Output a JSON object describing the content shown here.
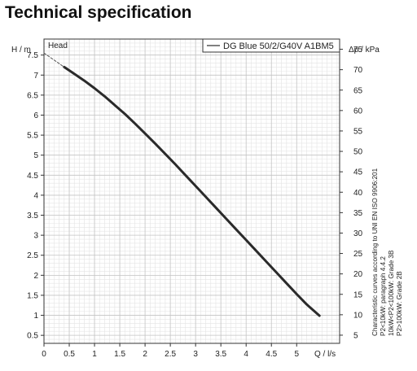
{
  "page": {
    "title": "Technical specification"
  },
  "chart_data": {
    "type": "line",
    "plot_label": "Head",
    "xlabel": "Q / l/s",
    "ylabel_left": "H / m",
    "ylabel_right": "Δp / kPa",
    "xlim": [
      0,
      5.85
    ],
    "ylim": [
      0.3,
      7.9
    ],
    "y2lim": [
      3,
      77.5
    ],
    "x_ticks": [
      "0",
      "0.5",
      "1",
      "1.5",
      "2",
      "2.5",
      "3",
      "3.5",
      "4",
      "4.5",
      "5"
    ],
    "x_tick_values": [
      0,
      0.5,
      1,
      1.5,
      2,
      2.5,
      3,
      3.5,
      4,
      4.5,
      5
    ],
    "y_ticks": [
      "0.5",
      "1",
      "1.5",
      "2",
      "2.5",
      "3",
      "3.5",
      "4",
      "4.5",
      "5",
      "5.5",
      "6",
      "6.5",
      "7",
      "7.5"
    ],
    "y_tick_values": [
      0.5,
      1,
      1.5,
      2,
      2.5,
      3,
      3.5,
      4,
      4.5,
      5,
      5.5,
      6,
      6.5,
      7,
      7.5
    ],
    "y2_ticks": [
      "5",
      "10",
      "15",
      "20",
      "25",
      "30",
      "35",
      "40",
      "45",
      "50",
      "55",
      "60",
      "65",
      "70",
      "75"
    ],
    "y2_tick_values": [
      5,
      10,
      15,
      20,
      25,
      30,
      35,
      40,
      45,
      50,
      55,
      60,
      65,
      70,
      75
    ],
    "grid": true,
    "legend": {
      "placement": "top-right",
      "entries": [
        "DG Blue 50/2/G40V A1BM5"
      ]
    },
    "series": [
      {
        "name": "DG Blue 50/2/G40V A1BM5",
        "color": "#2a2a2a",
        "x": [
          0.4,
          0.6,
          0.8,
          1.0,
          1.2,
          1.4,
          1.6,
          1.8,
          2.0,
          2.2,
          2.4,
          2.6,
          2.8,
          3.0,
          3.2,
          3.4,
          3.6,
          3.8,
          4.0,
          4.2,
          4.4,
          4.6,
          4.8,
          5.0,
          5.2,
          5.45
        ],
        "y": [
          7.2,
          7.03,
          6.86,
          6.67,
          6.47,
          6.25,
          6.03,
          5.79,
          5.54,
          5.29,
          5.03,
          4.77,
          4.5,
          4.23,
          3.96,
          3.69,
          3.42,
          3.15,
          2.88,
          2.61,
          2.34,
          2.07,
          1.8,
          1.53,
          1.27,
          0.99
        ]
      },
      {
        "name": "",
        "style": "dashed",
        "color": "#555555",
        "x": [
          0,
          0.4
        ],
        "y": [
          7.55,
          7.2
        ]
      }
    ],
    "notes": [
      "Characteristic curves according to UNI EN ISO 9906:201",
      "P2<10kW: paragraph 4.4.2",
      "10kW<P2<100kW: Grade 3B",
      "P2>100kW: Grade 2B"
    ]
  }
}
